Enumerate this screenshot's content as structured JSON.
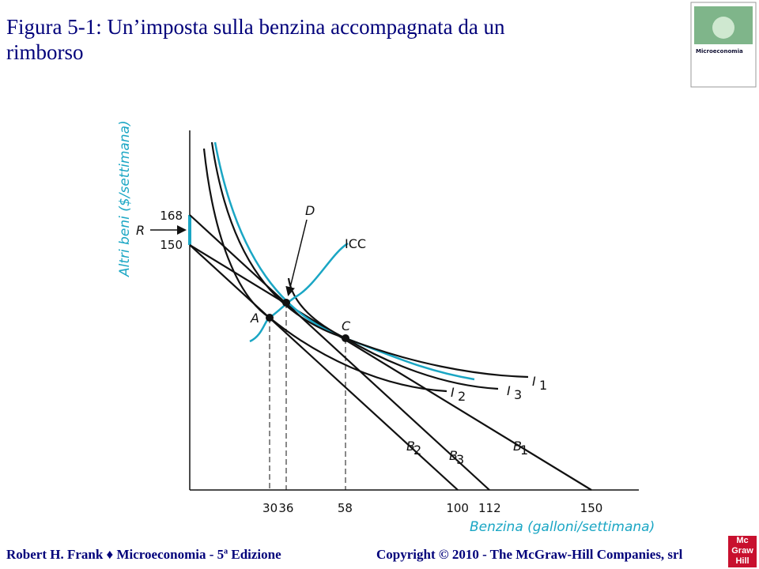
{
  "header": {
    "title": "Figura 5-1: Un’imposta sulla benzina accompagnata da un rimborso"
  },
  "cover": {
    "title": "Microeconomia"
  },
  "diagram": {
    "y_axis_label": "Altri beni ($/settimana)",
    "x_axis_label": "Benzina (galloni/settimana)",
    "x_ticks": [
      30,
      36,
      58,
      100,
      112,
      150
    ],
    "y_ticks": [
      168,
      150
    ],
    "labels": {
      "R": "R",
      "D": "D",
      "ICC": "ICC",
      "A": "A",
      "C": "C"
    },
    "curve_labels": [
      {
        "letter": "I",
        "sub": "1"
      },
      {
        "letter": "I",
        "sub": "2"
      },
      {
        "letter": "I",
        "sub": "3"
      },
      {
        "letter": "B",
        "sub": "2"
      },
      {
        "letter": "B",
        "sub": "3"
      },
      {
        "letter": "B",
        "sub": "1"
      }
    ]
  },
  "footer": {
    "left": [
      "Robert H. Frank ♦ Microeconomia - 5",
      "a",
      " Edizione"
    ],
    "right": "Copyright © 2010 - The McGraw-Hill Companies, srl",
    "logo": "Mc Graw Hill"
  }
}
